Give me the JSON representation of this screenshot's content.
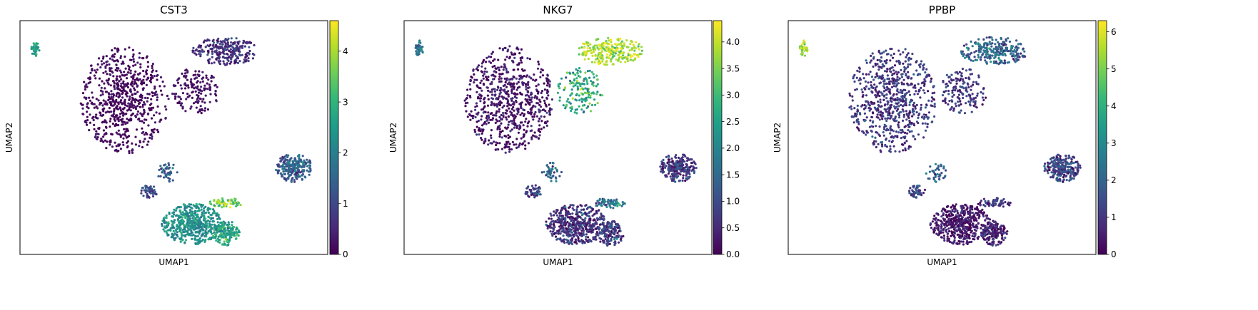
{
  "colormap": [
    "#440154",
    "#482878",
    "#3e4a89",
    "#31688e",
    "#26828e",
    "#1f9e89",
    "#35b779",
    "#6ece58",
    "#b5de2b",
    "#fde725"
  ],
  "point_size": 1.6,
  "seed": 12345,
  "chart_data": [
    {
      "type": "scatter",
      "title": "CST3",
      "xlabel": "UMAP1",
      "ylabel": "UMAP2",
      "xlim": [
        0,
        100
      ],
      "ylim": [
        0,
        100
      ],
      "grid": false,
      "colorbar": {
        "min": 0,
        "max": 4.6,
        "ticks": [
          0,
          1,
          2,
          3,
          4
        ],
        "tick_labels": [
          "0",
          "1",
          "2",
          "3",
          "4"
        ]
      },
      "clusters": [
        {
          "name": "top-left-small",
          "cx": 5,
          "cy": 88,
          "rx": 1.2,
          "ry": 3.2,
          "n": 40,
          "value": 2.6,
          "spread": 0.3
        },
        {
          "name": "large-left",
          "cx": 34,
          "cy": 66,
          "rx": 13,
          "ry": 21,
          "n": 700,
          "value": 0.1,
          "spread": 0.15
        },
        {
          "name": "top-right-arm",
          "cx": 67,
          "cy": 87,
          "rx": 10,
          "ry": 5.5,
          "n": 260,
          "value": 0.6,
          "spread": 0.3
        },
        {
          "name": "mid-connector",
          "cx": 57,
          "cy": 70,
          "rx": 7,
          "ry": 9,
          "n": 160,
          "value": 0.2,
          "spread": 0.15
        },
        {
          "name": "right-cluster",
          "cx": 89,
          "cy": 37,
          "rx": 5.5,
          "ry": 5.5,
          "n": 240,
          "value": 1.4,
          "spread": 0.4
        },
        {
          "name": "bottom-large",
          "cx": 56,
          "cy": 13,
          "rx": 9,
          "ry": 8,
          "n": 500,
          "value": 2.3,
          "spread": 0.35
        },
        {
          "name": "bottom-right-lobe",
          "cx": 67,
          "cy": 9,
          "rx": 4,
          "ry": 5,
          "n": 150,
          "value": 2.7,
          "spread": 0.4
        },
        {
          "name": "bottom-tail",
          "cx": 67,
          "cy": 22,
          "rx": 5,
          "ry": 2,
          "n": 60,
          "value": 3.6,
          "spread": 0.6
        },
        {
          "name": "small-left",
          "cx": 42,
          "cy": 27,
          "rx": 2.5,
          "ry": 2.5,
          "n": 50,
          "value": 1.0,
          "spread": 0.3
        },
        {
          "name": "small-middle",
          "cx": 48,
          "cy": 35,
          "rx": 3,
          "ry": 4,
          "n": 40,
          "value": 1.4,
          "spread": 0.4
        }
      ]
    },
    {
      "type": "scatter",
      "title": "NKG7",
      "xlabel": "UMAP1",
      "ylabel": "UMAP2",
      "xlim": [
        0,
        100
      ],
      "ylim": [
        0,
        100
      ],
      "grid": false,
      "colorbar": {
        "min": 0,
        "max": 4.4,
        "ticks": [
          0,
          0.5,
          1,
          1.5,
          2,
          2.5,
          3,
          3.5,
          4
        ],
        "tick_labels": [
          "0.0",
          "0.5",
          "1.0",
          "1.5",
          "2.0",
          "2.5",
          "3.0",
          "3.5",
          "4.0"
        ]
      },
      "clusters": [
        {
          "name": "top-left-small",
          "cx": 5,
          "cy": 88,
          "rx": 1.2,
          "ry": 3.2,
          "n": 40,
          "value": 1.6,
          "spread": 0.3
        },
        {
          "name": "large-left",
          "cx": 34,
          "cy": 66,
          "rx": 13,
          "ry": 21,
          "n": 700,
          "value": 0.2,
          "spread": 0.3
        },
        {
          "name": "top-right-arm",
          "cx": 67,
          "cy": 87,
          "rx": 10,
          "ry": 5.5,
          "n": 260,
          "value": 3.9,
          "spread": 0.4
        },
        {
          "name": "mid-connector",
          "cx": 57,
          "cy": 70,
          "rx": 7,
          "ry": 9,
          "n": 160,
          "value": 2.6,
          "spread": 0.6
        },
        {
          "name": "right-cluster",
          "cx": 89,
          "cy": 37,
          "rx": 5.5,
          "ry": 5.5,
          "n": 240,
          "value": 0.7,
          "spread": 0.4
        },
        {
          "name": "bottom-large",
          "cx": 56,
          "cy": 13,
          "rx": 9,
          "ry": 8,
          "n": 500,
          "value": 0.6,
          "spread": 0.4
        },
        {
          "name": "bottom-right-lobe",
          "cx": 67,
          "cy": 9,
          "rx": 4,
          "ry": 5,
          "n": 150,
          "value": 0.8,
          "spread": 0.4
        },
        {
          "name": "bottom-tail",
          "cx": 67,
          "cy": 22,
          "rx": 5,
          "ry": 2,
          "n": 60,
          "value": 1.6,
          "spread": 0.5
        },
        {
          "name": "small-left",
          "cx": 42,
          "cy": 27,
          "rx": 2.5,
          "ry": 2.5,
          "n": 50,
          "value": 0.9,
          "spread": 0.4
        },
        {
          "name": "small-middle",
          "cx": 48,
          "cy": 35,
          "rx": 3,
          "ry": 4,
          "n": 40,
          "value": 1.6,
          "spread": 0.5
        }
      ]
    },
    {
      "type": "scatter",
      "title": "PPBP",
      "xlabel": "UMAP1",
      "ylabel": "UMAP2",
      "xlim": [
        0,
        100
      ],
      "ylim": [
        0,
        100
      ],
      "grid": false,
      "colorbar": {
        "min": 0,
        "max": 6.3,
        "ticks": [
          0,
          1,
          2,
          3,
          4,
          5,
          6
        ],
        "tick_labels": [
          "0",
          "1",
          "2",
          "3",
          "4",
          "5",
          "6"
        ]
      },
      "clusters": [
        {
          "name": "top-left-small",
          "cx": 5,
          "cy": 88,
          "rx": 1.2,
          "ry": 3.2,
          "n": 40,
          "value": 5.5,
          "spread": 0.5
        },
        {
          "name": "large-left",
          "cx": 34,
          "cy": 66,
          "rx": 13,
          "ry": 21,
          "n": 700,
          "value": 1.0,
          "spread": 0.5
        },
        {
          "name": "top-right-arm",
          "cx": 67,
          "cy": 87,
          "rx": 10,
          "ry": 5.5,
          "n": 260,
          "value": 2.0,
          "spread": 0.7
        },
        {
          "name": "mid-connector",
          "cx": 57,
          "cy": 70,
          "rx": 7,
          "ry": 9,
          "n": 160,
          "value": 1.0,
          "spread": 0.5
        },
        {
          "name": "right-cluster",
          "cx": 89,
          "cy": 37,
          "rx": 5.5,
          "ry": 5.5,
          "n": 240,
          "value": 1.3,
          "spread": 0.6
        },
        {
          "name": "bottom-large",
          "cx": 56,
          "cy": 13,
          "rx": 9,
          "ry": 8,
          "n": 500,
          "value": 0.4,
          "spread": 0.4
        },
        {
          "name": "bottom-right-lobe",
          "cx": 67,
          "cy": 9,
          "rx": 4,
          "ry": 5,
          "n": 150,
          "value": 0.6,
          "spread": 0.5
        },
        {
          "name": "bottom-tail",
          "cx": 67,
          "cy": 22,
          "rx": 5,
          "ry": 2,
          "n": 60,
          "value": 1.0,
          "spread": 0.5
        },
        {
          "name": "small-left",
          "cx": 42,
          "cy": 27,
          "rx": 2.5,
          "ry": 2.5,
          "n": 50,
          "value": 1.3,
          "spread": 0.5
        },
        {
          "name": "small-middle",
          "cx": 48,
          "cy": 35,
          "rx": 3,
          "ry": 4,
          "n": 40,
          "value": 1.8,
          "spread": 0.6
        }
      ]
    }
  ]
}
